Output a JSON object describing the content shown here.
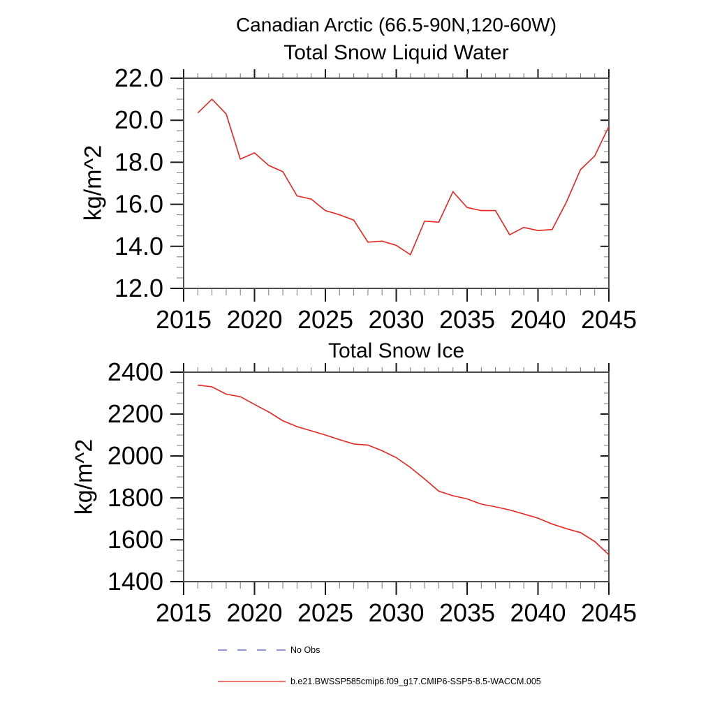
{
  "page_title": "Canadian Arctic (66.5-90N,120-60W)",
  "colors": {
    "series": "#e8231d",
    "no_obs": "#6f6fd2",
    "axis_border": "#4d4d4d",
    "major_tick": "#1a1a1a",
    "minor_tick": "#777777",
    "text": "#000000"
  },
  "legend": {
    "items": [
      {
        "label": "No Obs",
        "style": "dashed",
        "color_key": "no_obs"
      },
      {
        "label": "b.e21.BWSSP585cmip6.f09_g17.CMIP6-SSP5-8.5-WACCM.005",
        "style": "solid",
        "color_key": "series"
      }
    ]
  },
  "chart_data": [
    {
      "type": "line",
      "title": "Total Snow Liquid Water",
      "ylabel": "kg/m^2",
      "xlabel": "",
      "grid": false,
      "legend_position": "below",
      "xlim": [
        2015,
        2045
      ],
      "ylim": [
        12.0,
        22.0
      ],
      "xticks": [
        2015,
        2020,
        2025,
        2030,
        2035,
        2040,
        2045
      ],
      "xtick_labels": [
        "2015",
        "2020",
        "2025",
        "2030",
        "2035",
        "2040",
        "2045"
      ],
      "yticks": [
        12,
        14,
        16,
        18,
        20,
        22
      ],
      "ytick_labels": [
        "12.0",
        "14.0",
        "16.0",
        "18.0",
        "20.0",
        "22.0"
      ],
      "x_minor_step": 1,
      "y_minor_step": 0.5,
      "x": [
        2016,
        2017,
        2018,
        2019,
        2020,
        2021,
        2022,
        2023,
        2024,
        2025,
        2026,
        2027,
        2028,
        2029,
        2030,
        2031,
        2032,
        2033,
        2034,
        2035,
        2036,
        2037,
        2038,
        2039,
        2040,
        2041,
        2042,
        2043,
        2044,
        2045
      ],
      "series": [
        {
          "name": "b.e21.BWSSP585cmip6.f09_g17.CMIP6-SSP5-8.5-WACCM.005",
          "color_key": "series",
          "values": [
            20.35,
            21.0,
            20.3,
            18.15,
            18.45,
            17.85,
            17.55,
            16.4,
            16.25,
            15.7,
            15.5,
            15.25,
            14.2,
            14.25,
            14.05,
            13.6,
            15.2,
            15.15,
            16.6,
            15.85,
            15.7,
            15.7,
            14.55,
            14.9,
            14.75,
            14.8,
            16.1,
            17.65,
            18.3,
            19.7
          ]
        }
      ]
    },
    {
      "type": "line",
      "title": "Total Snow Ice",
      "ylabel": "kg/m^2",
      "xlabel": "",
      "grid": false,
      "legend_position": "below",
      "xlim": [
        2015,
        2045
      ],
      "ylim": [
        1400,
        2400
      ],
      "xticks": [
        2015,
        2020,
        2025,
        2030,
        2035,
        2040,
        2045
      ],
      "xtick_labels": [
        "2015",
        "2020",
        "2025",
        "2030",
        "2035",
        "2040",
        "2045"
      ],
      "yticks": [
        1400,
        1600,
        1800,
        2000,
        2200,
        2400
      ],
      "ytick_labels": [
        "1400",
        "1600",
        "1800",
        "2000",
        "2200",
        "2400"
      ],
      "x_minor_step": 1,
      "y_minor_step": 50,
      "x": [
        2016,
        2017,
        2018,
        2019,
        2020,
        2021,
        2022,
        2023,
        2024,
        2025,
        2026,
        2027,
        2028,
        2029,
        2030,
        2031,
        2032,
        2033,
        2034,
        2035,
        2036,
        2037,
        2038,
        2039,
        2040,
        2041,
        2042,
        2043,
        2044,
        2045
      ],
      "series": [
        {
          "name": "b.e21.BWSSP585cmip6.f09_g17.CMIP6-SSP5-8.5-WACCM.005",
          "color_key": "series",
          "values": [
            2338,
            2330,
            2295,
            2283,
            2246,
            2210,
            2168,
            2140,
            2120,
            2100,
            2078,
            2057,
            2052,
            2025,
            1992,
            1945,
            1890,
            1832,
            1810,
            1795,
            1770,
            1757,
            1742,
            1723,
            1703,
            1675,
            1653,
            1634,
            1592,
            1528
          ]
        }
      ]
    }
  ]
}
